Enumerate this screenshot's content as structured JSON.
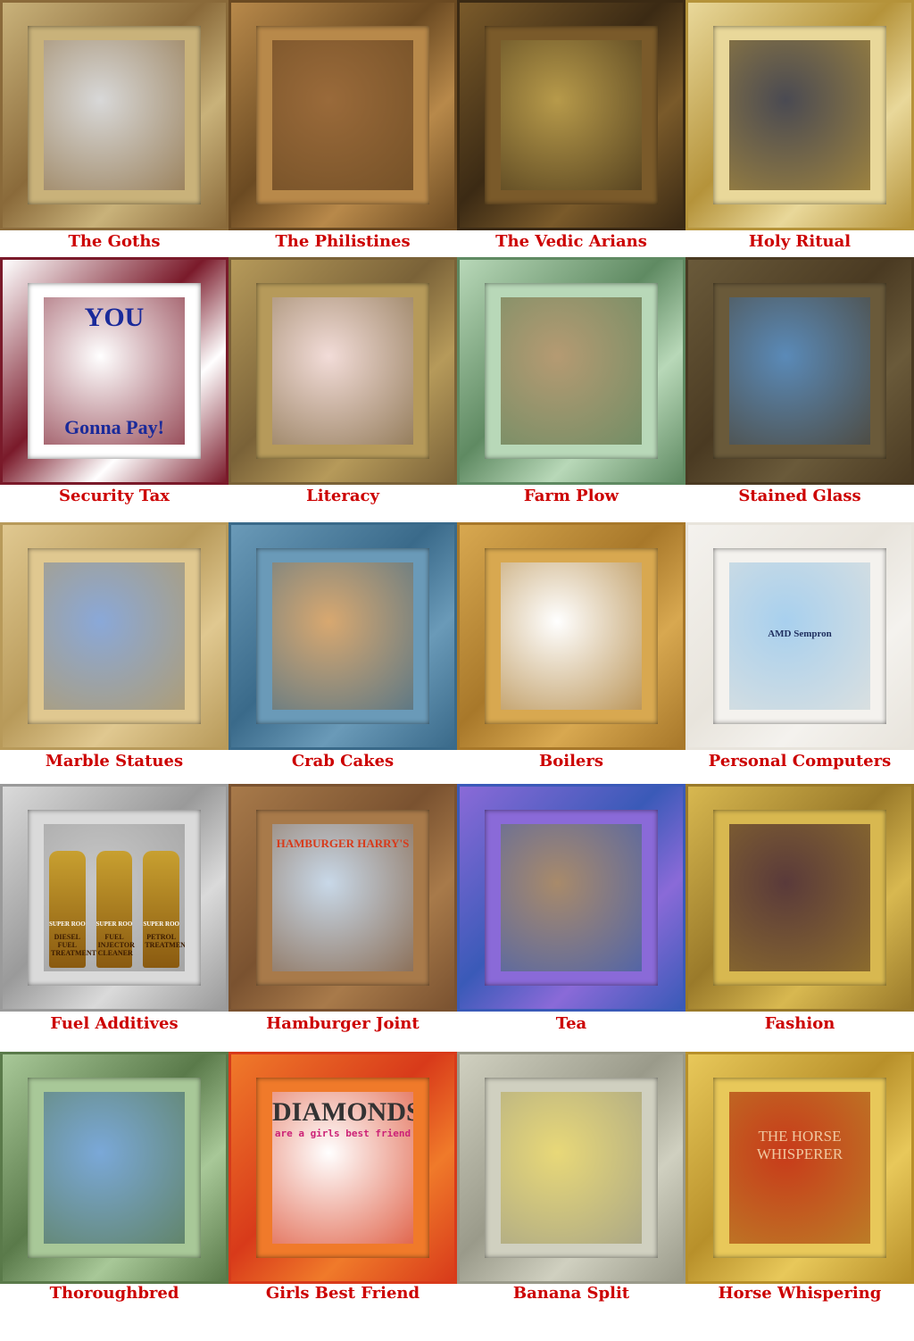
{
  "tiles": [
    {
      "caption": "The Goths",
      "frame_color": "#8a6a3a",
      "mat_color": "#c9b27a",
      "image_color": "#d8d8d8",
      "image_subject": "engraving-of-goth-warriors"
    },
    {
      "caption": "The Philistines",
      "frame_color": "#6b4a22",
      "mat_color": "#b8894a",
      "image_color": "#9a6a3a",
      "image_subject": "battle-painting"
    },
    {
      "caption": "The Vedic Arians",
      "frame_color": "#3b2a14",
      "mat_color": "#7a5a2a",
      "image_color": "#b79a4a",
      "image_subject": "chariot-battle-painting"
    },
    {
      "caption": "Holy Ritual",
      "frame_color": "#b5933a",
      "mat_color": "#e9d89a",
      "image_color": "#4a4a52",
      "image_subject": "incense-smoke-ritual"
    },
    {
      "caption": "Security Tax",
      "frame_color": "#7a1a2a",
      "mat_color": "#ffffff",
      "image_color": "#ffffff",
      "image_subject": "uncle-sam-poster",
      "poster_top": "YOU",
      "poster_bottom": "Gonna Pay!"
    },
    {
      "caption": "Literacy",
      "frame_color": "#7a6238",
      "mat_color": "#b69a5a",
      "image_color": "#f2dcd8",
      "image_subject": "raised-hands-with-book"
    },
    {
      "caption": "Farm Plow",
      "frame_color": "#5f8a62",
      "mat_color": "#b8d8b8",
      "image_color": "#b59a72",
      "image_subject": "oxen-plowing-field"
    },
    {
      "caption": "Stained Glass",
      "frame_color": "#4a3a22",
      "mat_color": "#6a5a3a",
      "image_color": "#5a8ab8",
      "image_subject": "stained-glass-dove"
    },
    {
      "caption": "Marble Statues",
      "frame_color": "#b89a5a",
      "mat_color": "#e0c890",
      "image_color": "#8aa8d8",
      "image_subject": "marble-statue"
    },
    {
      "caption": "Crab Cakes",
      "frame_color": "#3a6a8a",
      "mat_color": "#6a9ab8",
      "image_color": "#d8a870",
      "image_subject": "crab-cakes-plate"
    },
    {
      "caption": "Boilers",
      "frame_color": "#a8782a",
      "mat_color": "#d8a850",
      "image_color": "#ffffff",
      "image_subject": "industrial-boilers"
    },
    {
      "caption": "Personal Computers",
      "frame_color": "#e8e4dc",
      "mat_color": "#f4f2ee",
      "image_color": "#a8d0ee",
      "image_subject": "desktop-computer",
      "screen_text": "AMD Sempron"
    },
    {
      "caption": "Fuel Additives",
      "frame_color": "#9a9a9a",
      "mat_color": "#dadada",
      "image_color": "#c8c8c8",
      "image_subject": "fuel-additive-bottles",
      "bottle_labels": [
        "DIESEL FUEL TREATMENT",
        "FUEL INJECTOR CLEANER",
        "PETROL TREATMENT"
      ],
      "bottle_brand": "SUPER ROO"
    },
    {
      "caption": "Hamburger Joint",
      "frame_color": "#7a5230",
      "mat_color": "#a87a4a",
      "image_color": "#c8d8e8",
      "image_subject": "restaurant-storefront",
      "sign_text": "HAMBURGER HARRY'S"
    },
    {
      "caption": "Tea",
      "frame_color": "#3a5ab8",
      "mat_color": "#8a6ad8",
      "image_color": "#a88a6a",
      "image_subject": "woman-drinking-tea"
    },
    {
      "caption": "Fashion",
      "frame_color": "#9a7a2a",
      "mat_color": "#d8b850",
      "image_color": "#5a3a3a",
      "image_subject": "fashion-runway"
    },
    {
      "caption": "Thoroughbred",
      "frame_color": "#5a7a4a",
      "mat_color": "#a8c898",
      "image_color": "#7aa8d8",
      "image_subject": "racehorse-and-jockey"
    },
    {
      "caption": "Girls Best Friend",
      "frame_color": "#d83a1a",
      "mat_color": "#f07a2a",
      "image_color": "#ffffff",
      "image_subject": "pink-diamond",
      "poster_top": "DIAMONDS",
      "poster_sub": "are a girls best friend"
    },
    {
      "caption": "Banana Split",
      "frame_color": "#9a9a8a",
      "mat_color": "#d0d0c0",
      "image_color": "#e8d878",
      "image_subject": "banana-split-dessert"
    },
    {
      "caption": "Horse Whispering",
      "frame_color": "#b8902a",
      "mat_color": "#e8c85a",
      "image_color": "#c83a1a",
      "image_subject": "horse-whisperer-poster",
      "poster_top": "THE HORSE WHISPERER"
    }
  ]
}
